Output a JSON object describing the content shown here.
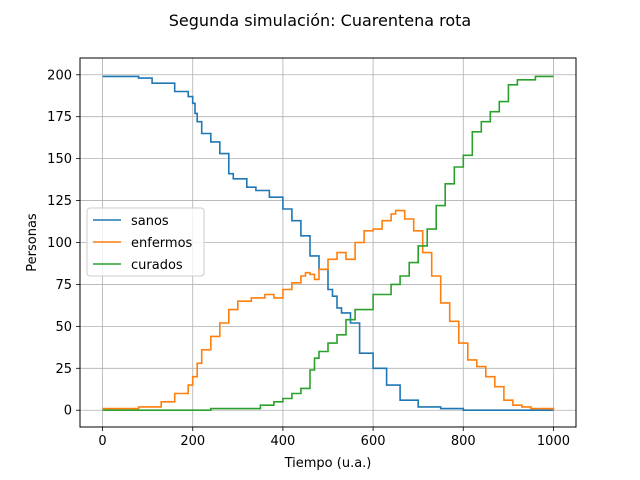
{
  "chart_data": {
    "type": "line",
    "title": "Segunda simulación: Cuarentena rota",
    "xlabel": "Tiempo (u.a.)",
    "ylabel": "Personas",
    "xlim": [
      -50,
      1050
    ],
    "ylim": [
      -10,
      210
    ],
    "xticks": [
      0,
      200,
      400,
      600,
      800,
      1000
    ],
    "yticks": [
      0,
      25,
      50,
      75,
      100,
      125,
      150,
      175,
      200
    ],
    "grid": true,
    "legend_position": "center-left",
    "series": [
      {
        "name": "sanos",
        "color": "#1f77b4",
        "x": [
          0,
          80,
          110,
          160,
          190,
          200,
          205,
          210,
          220,
          240,
          260,
          280,
          290,
          320,
          340,
          370,
          400,
          420,
          440,
          460,
          480,
          500,
          510,
          520,
          530,
          550,
          570,
          600,
          630,
          660,
          700,
          750,
          800,
          1000
        ],
        "y": [
          199,
          198,
          195,
          190,
          187,
          183,
          177,
          172,
          165,
          160,
          153,
          141,
          138,
          133,
          131,
          127,
          120,
          113,
          104,
          92,
          84,
          72,
          68,
          61,
          58,
          52,
          34,
          25,
          15,
          6,
          2,
          1,
          0,
          0
        ]
      },
      {
        "name": "enfermos",
        "color": "#ff7f0e",
        "x": [
          0,
          80,
          130,
          160,
          190,
          200,
          210,
          220,
          240,
          260,
          280,
          300,
          330,
          360,
          380,
          400,
          420,
          440,
          450,
          460,
          470,
          480,
          500,
          520,
          540,
          560,
          580,
          600,
          620,
          640,
          650,
          670,
          690,
          710,
          730,
          750,
          770,
          790,
          810,
          830,
          850,
          870,
          890,
          910,
          930,
          950,
          1000
        ],
        "y": [
          1,
          2,
          5,
          10,
          15,
          20,
          28,
          36,
          44,
          52,
          60,
          65,
          67,
          69,
          67,
          72,
          76,
          80,
          82,
          81,
          78,
          84,
          90,
          94,
          90,
          100,
          107,
          108,
          113,
          117,
          119,
          114,
          107,
          94,
          80,
          64,
          53,
          40,
          30,
          26,
          20,
          14,
          6,
          3,
          2,
          1,
          0
        ]
      },
      {
        "name": "curados",
        "color": "#2ca02c",
        "x": [
          0,
          240,
          300,
          350,
          380,
          400,
          420,
          440,
          460,
          470,
          480,
          500,
          520,
          540,
          560,
          600,
          640,
          660,
          680,
          700,
          720,
          740,
          760,
          780,
          800,
          820,
          840,
          860,
          880,
          900,
          920,
          960,
          1000
        ],
        "y": [
          0,
          1,
          1,
          3,
          5,
          7,
          10,
          13,
          24,
          31,
          35,
          40,
          45,
          54,
          60,
          69,
          75,
          80,
          88,
          98,
          108,
          122,
          135,
          145,
          152,
          166,
          172,
          178,
          184,
          194,
          197,
          199,
          199
        ]
      }
    ]
  }
}
